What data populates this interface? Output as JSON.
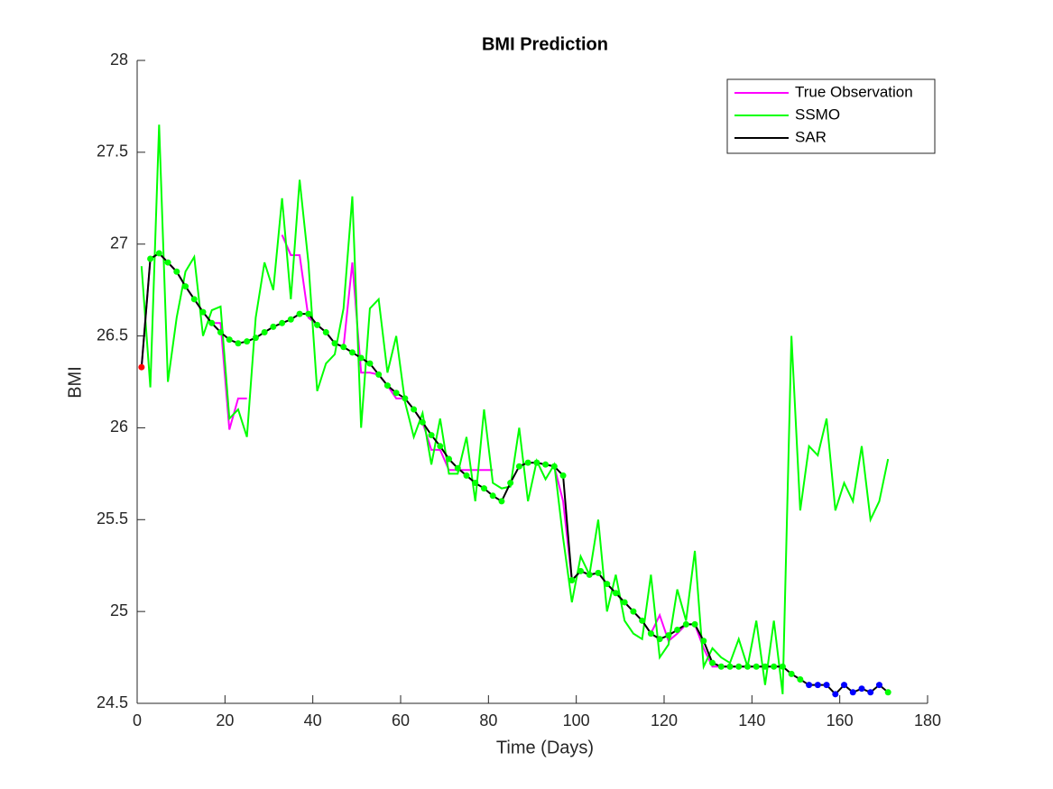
{
  "chart_data": {
    "type": "line",
    "title": "BMI Prediction",
    "x_label": "Time (Days)",
    "y_label": "BMI",
    "x": [
      1,
      3,
      5,
      7,
      9,
      11,
      13,
      15,
      17,
      19,
      21,
      23,
      25,
      27,
      29,
      31,
      33,
      35,
      37,
      39,
      41,
      43,
      45,
      47,
      49,
      51,
      53,
      55,
      57,
      59,
      61,
      63,
      65,
      67,
      69,
      71,
      73,
      75,
      77,
      79,
      81,
      83,
      85,
      87,
      89,
      91,
      93,
      95,
      97,
      99,
      101,
      103,
      105,
      107,
      109,
      111,
      113,
      115,
      117,
      119,
      121,
      123,
      125,
      127,
      129,
      131,
      133,
      135,
      137,
      139,
      141,
      143,
      145,
      147,
      149,
      151,
      153,
      155,
      157,
      159,
      161,
      163,
      165,
      167,
      169,
      171
    ],
    "series": [
      {
        "name": "True Observation",
        "color": "#ff00ff",
        "values": [
          26.33,
          26.92,
          26.95,
          26.9,
          26.85,
          26.77,
          26.7,
          26.63,
          26.57,
          26.57,
          25.99,
          26.16,
          26.16,
          null,
          null,
          null,
          27.05,
          26.94,
          26.94,
          26.6,
          26.56,
          26.52,
          26.46,
          26.44,
          26.9,
          26.3,
          26.3,
          26.29,
          26.23,
          26.16,
          26.16,
          26.1,
          26.03,
          25.88,
          25.88,
          25.77,
          25.77,
          25.77,
          25.77,
          25.77,
          25.77,
          null,
          null,
          25.79,
          25.81,
          25.81,
          25.8,
          25.79,
          25.6,
          25.17,
          25.22,
          25.2,
          25.21,
          25.15,
          25.1,
          25.05,
          25.0,
          24.95,
          24.88,
          24.98,
          24.84,
          24.88,
          24.93,
          24.93,
          24.8,
          24.7,
          24.7,
          24.7,
          24.7,
          24.7,
          24.7,
          24.7,
          24.7,
          24.7,
          null,
          null,
          null,
          null,
          null,
          null,
          null,
          null,
          null,
          null,
          null,
          null
        ]
      },
      {
        "name": "SSMO",
        "color": "#00ff00",
        "values": [
          26.88,
          26.22,
          27.65,
          26.25,
          26.6,
          26.85,
          26.93,
          26.5,
          26.64,
          26.66,
          26.05,
          26.1,
          25.95,
          26.6,
          26.9,
          26.75,
          27.25,
          26.7,
          27.35,
          26.9,
          26.2,
          26.35,
          26.4,
          26.65,
          27.26,
          26.0,
          26.65,
          26.7,
          26.3,
          26.5,
          26.14,
          25.95,
          26.08,
          25.8,
          26.05,
          25.75,
          25.75,
          25.95,
          25.6,
          26.1,
          25.7,
          25.67,
          25.68,
          26.0,
          25.6,
          25.82,
          25.72,
          25.8,
          25.4,
          25.05,
          25.3,
          25.2,
          25.5,
          25.0,
          25.2,
          24.95,
          24.88,
          24.85,
          25.2,
          24.75,
          24.82,
          25.12,
          24.95,
          25.33,
          24.7,
          24.8,
          24.75,
          24.72,
          24.85,
          24.7,
          24.95,
          24.6,
          24.95,
          24.55,
          26.5,
          25.55,
          25.9,
          25.85,
          26.05,
          25.55,
          25.7,
          25.6,
          25.9,
          25.5,
          25.6,
          25.83
        ]
      },
      {
        "name": "SAR",
        "color": "#000000",
        "values": [
          26.33,
          26.92,
          26.95,
          26.9,
          26.85,
          26.77,
          26.7,
          26.63,
          26.57,
          26.52,
          26.48,
          26.46,
          26.47,
          26.49,
          26.52,
          26.55,
          26.57,
          26.59,
          26.62,
          26.62,
          26.56,
          26.52,
          26.46,
          26.44,
          26.41,
          26.38,
          26.35,
          26.29,
          26.23,
          26.19,
          26.16,
          26.1,
          26.03,
          25.96,
          25.9,
          25.83,
          25.78,
          25.74,
          25.7,
          25.67,
          25.63,
          25.6,
          25.7,
          25.79,
          25.81,
          25.81,
          25.8,
          25.79,
          25.74,
          25.17,
          25.22,
          25.2,
          25.21,
          25.15,
          25.1,
          25.05,
          25.0,
          24.95,
          24.88,
          24.85,
          24.87,
          24.9,
          24.93,
          24.93,
          24.84,
          24.72,
          24.7,
          24.7,
          24.7,
          24.7,
          24.7,
          24.7,
          24.7,
          24.7,
          24.66,
          24.63,
          24.6,
          24.6,
          24.6,
          24.55,
          24.6,
          24.56,
          24.58,
          24.56,
          24.6,
          24.56
        ],
        "markers": [
          {
            "color": "#ff0000",
            "start": 1,
            "end": 1
          },
          {
            "color": "#00ff00",
            "start": 3,
            "end": 151
          },
          {
            "color": "#0000ff",
            "start": 153,
            "end": 169
          },
          {
            "color": "#00ff00",
            "start": 171,
            "end": 171
          }
        ]
      }
    ],
    "xlim": [
      0,
      180
    ],
    "xticks": [
      0,
      20,
      40,
      60,
      80,
      100,
      120,
      140,
      160,
      180
    ],
    "ylim": [
      24.5,
      28
    ],
    "yticks": [
      24.5,
      25,
      25.5,
      26,
      26.5,
      27,
      27.5,
      28
    ],
    "legend": "upper right"
  }
}
